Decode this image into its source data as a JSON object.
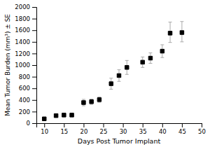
{
  "chart_data": {
    "type": "scatter",
    "x": [
      10,
      13,
      15,
      17,
      20,
      22,
      24,
      27,
      29,
      31,
      35,
      37,
      40,
      42,
      45
    ],
    "values": [
      75,
      130,
      140,
      140,
      355,
      370,
      405,
      680,
      820,
      960,
      1050,
      1120,
      1240,
      1550,
      1560
    ],
    "error_low": [
      15,
      25,
      20,
      15,
      55,
      45,
      45,
      95,
      100,
      120,
      90,
      90,
      110,
      160,
      160
    ],
    "error_high": [
      15,
      25,
      20,
      15,
      55,
      45,
      45,
      95,
      100,
      120,
      90,
      90,
      110,
      190,
      190
    ],
    "xlabel": "Days Post Tumor Implant",
    "ylabel": "Mean Tumor Burden (mm³) ± SE",
    "xlim": [
      8,
      50
    ],
    "ylim": [
      0,
      2000
    ],
    "xticks": [
      10,
      15,
      20,
      25,
      30,
      35,
      40,
      45,
      50
    ],
    "yticks": [
      0,
      200,
      400,
      600,
      800,
      1000,
      1200,
      1400,
      1600,
      1800,
      2000
    ],
    "color": "#000000",
    "marker": "square",
    "grid": false
  }
}
